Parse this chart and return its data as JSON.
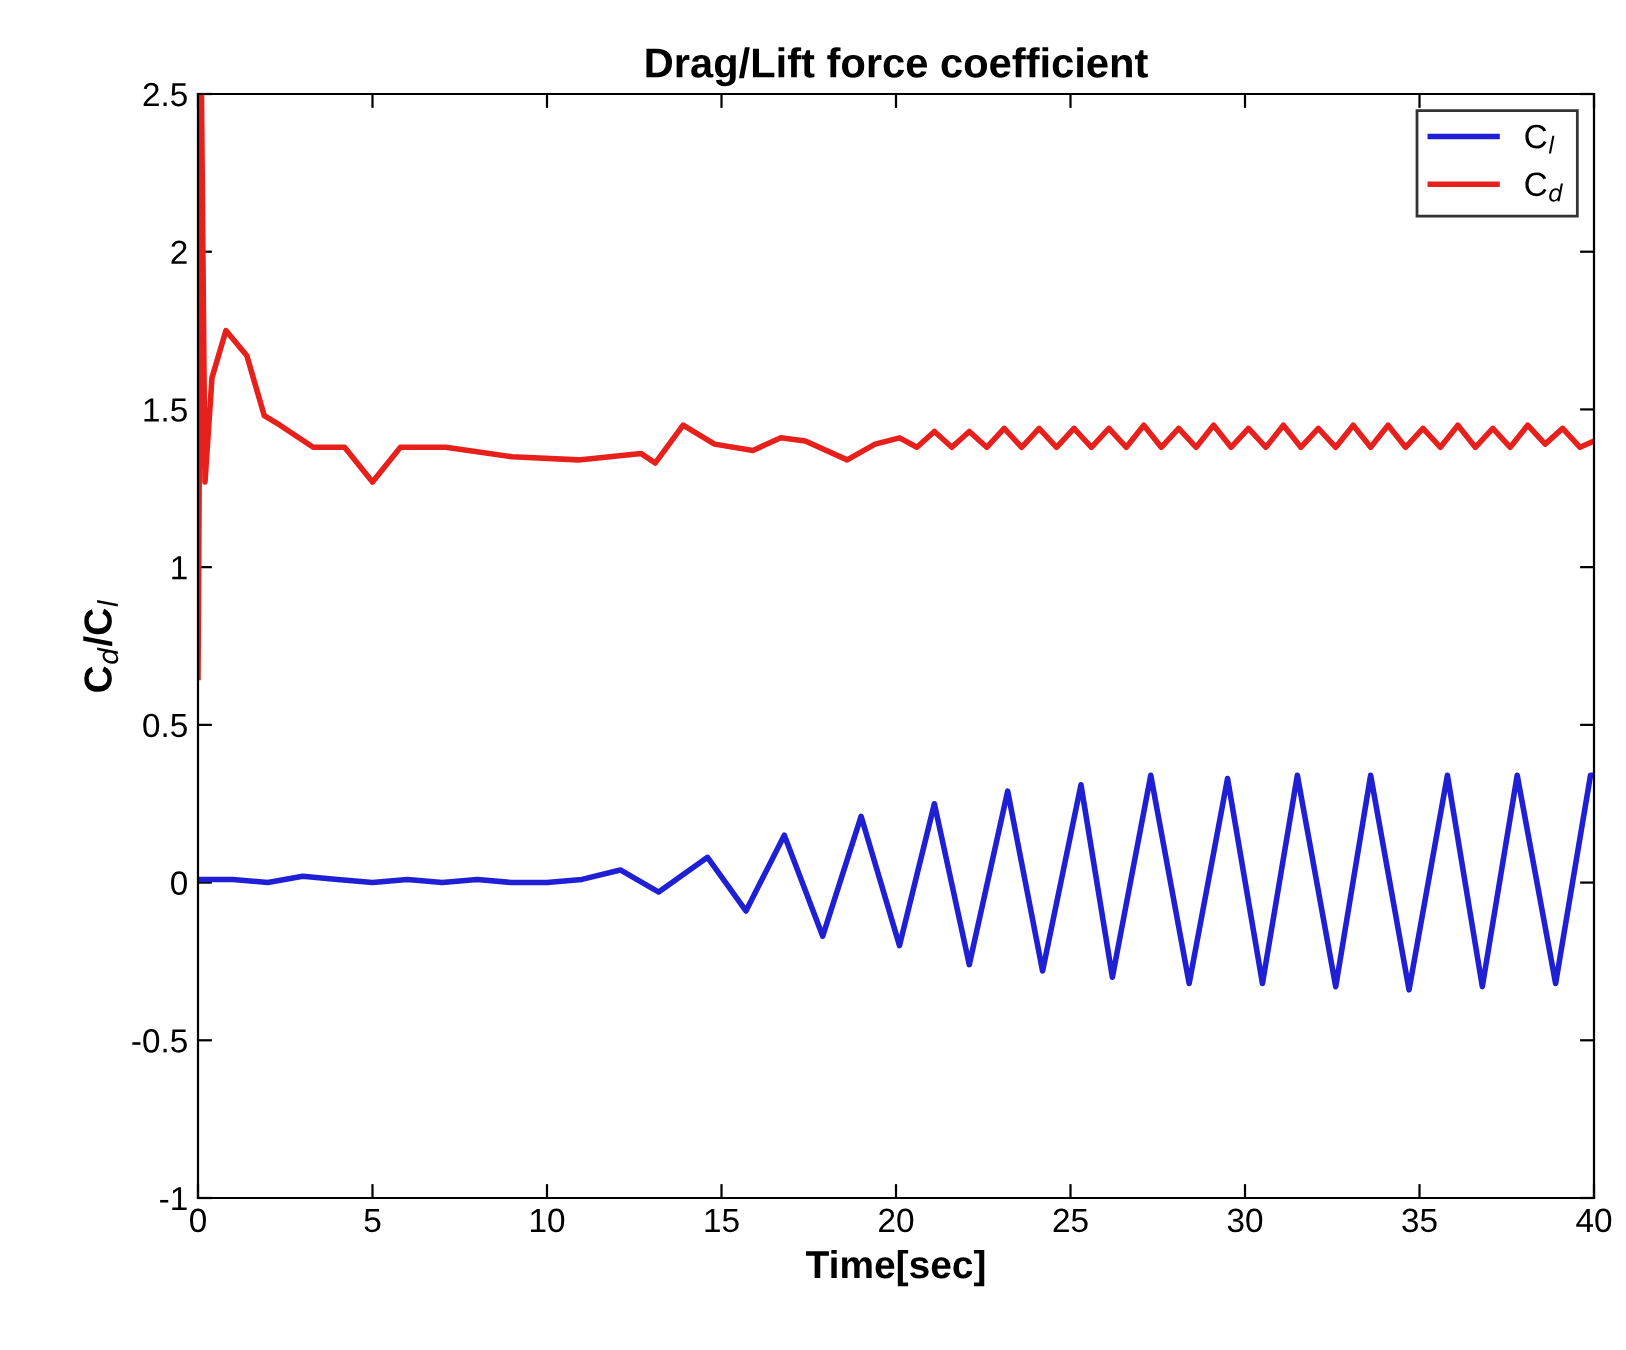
{
  "chart_data": {
    "type": "line",
    "title": "Drag/Lift force coefficient",
    "xlabel": "Time[sec]",
    "ylabel": "C$_{d}$/C$_{l}$",
    "xlim": [
      0,
      40
    ],
    "ylim": [
      -1,
      2.5
    ],
    "xticks": [
      0,
      5,
      10,
      15,
      20,
      25,
      30,
      35,
      40
    ],
    "yticks": [
      -1,
      {
        "value": -0.5,
        "label": "-0.5"
      },
      0,
      0.5,
      1,
      1.5,
      2,
      2.5
    ],
    "grid": false,
    "legend": "top right",
    "line_style": "solid",
    "marker": "none",
    "series": [
      {
        "name": "C$_{l}$",
        "color": "#1f1fd6",
        "x": [
          0,
          1,
          2,
          3,
          4,
          5,
          6,
          7,
          8,
          9,
          10,
          11,
          12.1,
          13.2,
          14.6,
          15.7,
          16.8,
          17.9,
          19.0,
          20.1,
          21.1,
          22.1,
          23.2,
          24.2,
          25.3,
          26.2,
          27.3,
          28.4,
          29.5,
          30.5,
          31.5,
          32.6,
          33.6,
          34.7,
          35.8,
          36.8,
          37.8,
          38.9,
          39.9,
          40
        ],
        "values": [
          0.01,
          0.01,
          0.0,
          0.02,
          0.01,
          0.0,
          0.01,
          0.0,
          0.01,
          0.0,
          0.0,
          0.01,
          0.04,
          -0.03,
          0.08,
          -0.09,
          0.15,
          -0.17,
          0.21,
          -0.2,
          0.25,
          -0.26,
          0.29,
          -0.28,
          0.31,
          -0.3,
          0.34,
          -0.32,
          0.33,
          -0.32,
          0.34,
          -0.33,
          0.34,
          -0.34,
          0.34,
          -0.33,
          0.34,
          -0.32,
          0.34,
          0.34
        ]
      },
      {
        "name": "C$_{d}$",
        "color": "#e8201c",
        "x": [
          0,
          0.1,
          0.2,
          0.4,
          0.8,
          1.4,
          1.9,
          2.35,
          3.3,
          4.2,
          5.0,
          5.8,
          7.1,
          9.0,
          10.9,
          12.7,
          13.1,
          13.9,
          14.8,
          15.9,
          16.7,
          17.4,
          18.6,
          19.4,
          20.1,
          20.6,
          21.1,
          21.6,
          22.1,
          22.6,
          23.1,
          23.6,
          24.1,
          24.6,
          25.1,
          25.6,
          26.1,
          26.6,
          27.1,
          27.6,
          28.1,
          28.6,
          29.1,
          29.6,
          30.1,
          30.6,
          31.1,
          31.6,
          32.1,
          32.6,
          33.1,
          33.6,
          34.1,
          34.6,
          35.1,
          35.6,
          36.1,
          36.6,
          37.1,
          37.6,
          38.1,
          38.6,
          39.1,
          39.6,
          40
        ],
        "values": [
          0.65,
          2.5,
          1.27,
          1.6,
          1.75,
          1.67,
          1.48,
          1.45,
          1.38,
          1.38,
          1.27,
          1.38,
          1.38,
          1.35,
          1.34,
          1.36,
          1.33,
          1.45,
          1.39,
          1.37,
          1.41,
          1.4,
          1.34,
          1.39,
          1.41,
          1.38,
          1.43,
          1.38,
          1.43,
          1.38,
          1.44,
          1.38,
          1.44,
          1.38,
          1.44,
          1.38,
          1.44,
          1.38,
          1.45,
          1.38,
          1.44,
          1.38,
          1.45,
          1.38,
          1.44,
          1.38,
          1.45,
          1.38,
          1.44,
          1.38,
          1.45,
          1.38,
          1.45,
          1.38,
          1.44,
          1.38,
          1.45,
          1.38,
          1.44,
          1.38,
          1.45,
          1.39,
          1.44,
          1.38,
          1.4
        ]
      }
    ]
  }
}
